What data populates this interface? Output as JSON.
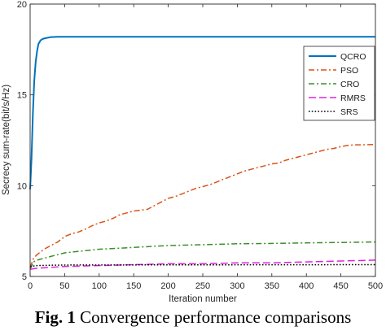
{
  "caption": {
    "label": "Fig. 1",
    "text": " Convergence performance comparisons"
  },
  "chart_data": {
    "type": "line",
    "xlabel": "Iteration number",
    "ylabel": "Secrecy sum-rate(bit/s/Hz)",
    "xlim": [
      0,
      500
    ],
    "ylim": [
      5,
      20
    ],
    "xticks": [
      0,
      50,
      100,
      150,
      200,
      250,
      300,
      350,
      400,
      450,
      500
    ],
    "yticks": [
      5,
      10,
      15,
      20
    ],
    "grid": false,
    "legend_position": "top-right",
    "series": [
      {
        "name": "QCRO",
        "color": "#0072BD",
        "style": "solid",
        "x": [
          0,
          2,
          4,
          6,
          8,
          10,
          12,
          15,
          18,
          22,
          26,
          30,
          40,
          500
        ],
        "y": [
          9.8,
          11.5,
          14.0,
          15.8,
          16.8,
          17.4,
          17.8,
          18.0,
          18.08,
          18.12,
          18.15,
          18.18,
          18.2,
          18.2
        ]
      },
      {
        "name": "PSO",
        "color": "#D95319",
        "style": "dashdot",
        "x": [
          0,
          5,
          10,
          20,
          30,
          40,
          50,
          60,
          70,
          80,
          90,
          100,
          110,
          120,
          130,
          140,
          150,
          160,
          170,
          180,
          190,
          200,
          210,
          220,
          230,
          240,
          250,
          260,
          270,
          280,
          290,
          300,
          310,
          320,
          330,
          340,
          350,
          360,
          370,
          380,
          390,
          400,
          410,
          420,
          430,
          440,
          450,
          460,
          470,
          480,
          490,
          500
        ],
        "y": [
          5.5,
          6.0,
          6.2,
          6.5,
          6.7,
          6.9,
          7.2,
          7.35,
          7.45,
          7.6,
          7.8,
          7.95,
          8.05,
          8.2,
          8.4,
          8.5,
          8.6,
          8.65,
          8.7,
          8.9,
          9.1,
          9.3,
          9.4,
          9.55,
          9.7,
          9.85,
          9.95,
          10.05,
          10.2,
          10.35,
          10.5,
          10.65,
          10.8,
          10.9,
          11.0,
          11.1,
          11.2,
          11.25,
          11.4,
          11.5,
          11.6,
          11.7,
          11.8,
          11.9,
          12.0,
          12.05,
          12.15,
          12.22,
          12.25,
          12.25,
          12.26,
          12.27
        ]
      },
      {
        "name": "CRO",
        "color": "#3A8F2C",
        "style": "dashdot",
        "x": [
          0,
          5,
          10,
          20,
          30,
          40,
          50,
          75,
          100,
          125,
          150,
          175,
          200,
          250,
          300,
          350,
          400,
          450,
          500
        ],
        "y": [
          5.4,
          5.8,
          5.9,
          6.0,
          6.1,
          6.2,
          6.3,
          6.4,
          6.5,
          6.55,
          6.6,
          6.65,
          6.7,
          6.75,
          6.8,
          6.82,
          6.85,
          6.87,
          6.9
        ]
      },
      {
        "name": "RMRS",
        "color": "#E022E0",
        "style": "dashed",
        "x": [
          0,
          10,
          30,
          50,
          100,
          150,
          200,
          250,
          300,
          350,
          400,
          450,
          500
        ],
        "y": [
          5.4,
          5.45,
          5.5,
          5.55,
          5.6,
          5.65,
          5.7,
          5.7,
          5.75,
          5.75,
          5.8,
          5.85,
          5.9
        ]
      },
      {
        "name": "SRS",
        "color": "#000000",
        "style": "dotted",
        "x": [
          0,
          10,
          30,
          60,
          500
        ],
        "y": [
          5.55,
          5.6,
          5.62,
          5.63,
          5.65
        ]
      }
    ]
  }
}
